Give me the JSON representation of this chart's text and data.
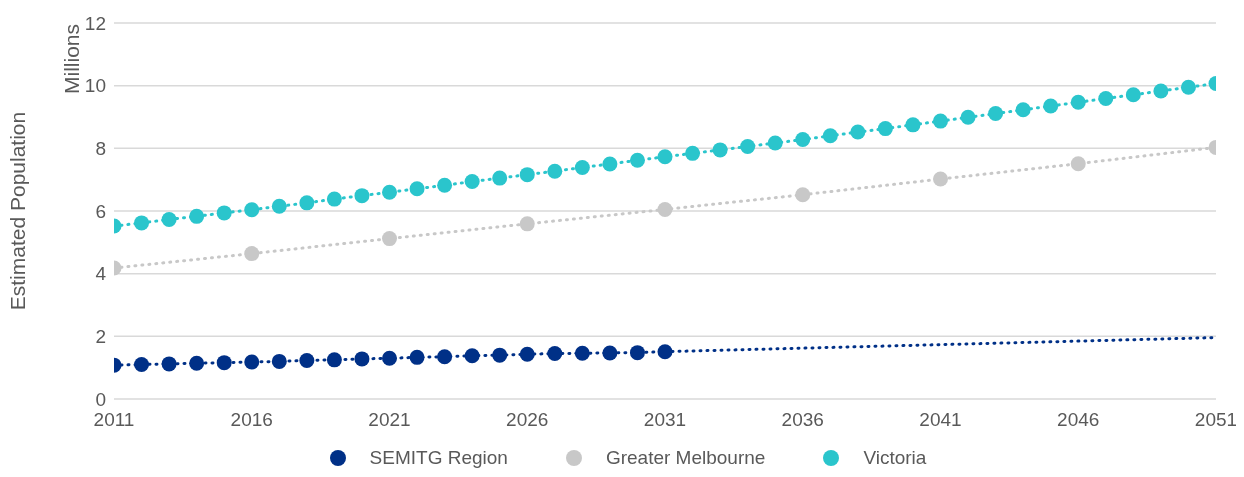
{
  "chart_data": {
    "type": "line",
    "ylabel": "Estimated Population",
    "annotations": [
      "Millions"
    ],
    "xlim": [
      2011,
      2051
    ],
    "xticks": [
      2011,
      2016,
      2021,
      2026,
      2031,
      2036,
      2041,
      2046,
      2051
    ],
    "ylim": [
      0,
      12
    ],
    "yticks": [
      0,
      2,
      4,
      6,
      8,
      10,
      12
    ],
    "grid": "y",
    "legend": "bottom",
    "marker": "circle",
    "line_style": "dotted",
    "series": [
      {
        "name": "SEMITG Region",
        "color": "#003087",
        "x": [
          2011,
          2012,
          2013,
          2014,
          2015,
          2016,
          2017,
          2018,
          2019,
          2020,
          2021,
          2022,
          2023,
          2024,
          2025,
          2026,
          2027,
          2028,
          2029,
          2030,
          2031
        ],
        "values": [
          1.08,
          1.1,
          1.12,
          1.14,
          1.16,
          1.18,
          1.2,
          1.23,
          1.25,
          1.28,
          1.3,
          1.33,
          1.35,
          1.38,
          1.4,
          1.43,
          1.45,
          1.46,
          1.47,
          1.48,
          1.51
        ]
      },
      {
        "color": "#003087",
        "marker": "none",
        "x": [
          2031,
          2051
        ],
        "values": [
          1.51,
          1.96
        ]
      },
      {
        "name": "Greater Melbourne",
        "color": "#c8c8c8",
        "x": [
          2011,
          2016,
          2021,
          2026,
          2031,
          2036,
          2041,
          2046,
          2051
        ],
        "values": [
          4.18,
          4.64,
          5.12,
          5.59,
          6.05,
          6.52,
          7.02,
          7.51,
          8.03
        ]
      },
      {
        "name": "Victoria",
        "color": "#2ac5cc",
        "x": [
          2011,
          2012,
          2013,
          2014,
          2015,
          2016,
          2017,
          2018,
          2019,
          2020,
          2021,
          2022,
          2023,
          2024,
          2025,
          2026,
          2027,
          2028,
          2029,
          2030,
          2031,
          2032,
          2033,
          2034,
          2035,
          2036,
          2037,
          2038,
          2039,
          2040,
          2041,
          2042,
          2043,
          2044,
          2045,
          2046,
          2047,
          2048,
          2049,
          2050,
          2051
        ],
        "values": [
          5.52,
          5.62,
          5.73,
          5.83,
          5.94,
          6.04,
          6.15,
          6.26,
          6.38,
          6.49,
          6.6,
          6.71,
          6.82,
          6.94,
          7.05,
          7.16,
          7.27,
          7.39,
          7.5,
          7.62,
          7.73,
          7.84,
          7.95,
          8.06,
          8.17,
          8.28,
          8.4,
          8.52,
          8.63,
          8.75,
          8.87,
          8.99,
          9.11,
          9.23,
          9.35,
          9.47,
          9.59,
          9.71,
          9.83,
          9.95,
          10.07
        ]
      }
    ]
  }
}
